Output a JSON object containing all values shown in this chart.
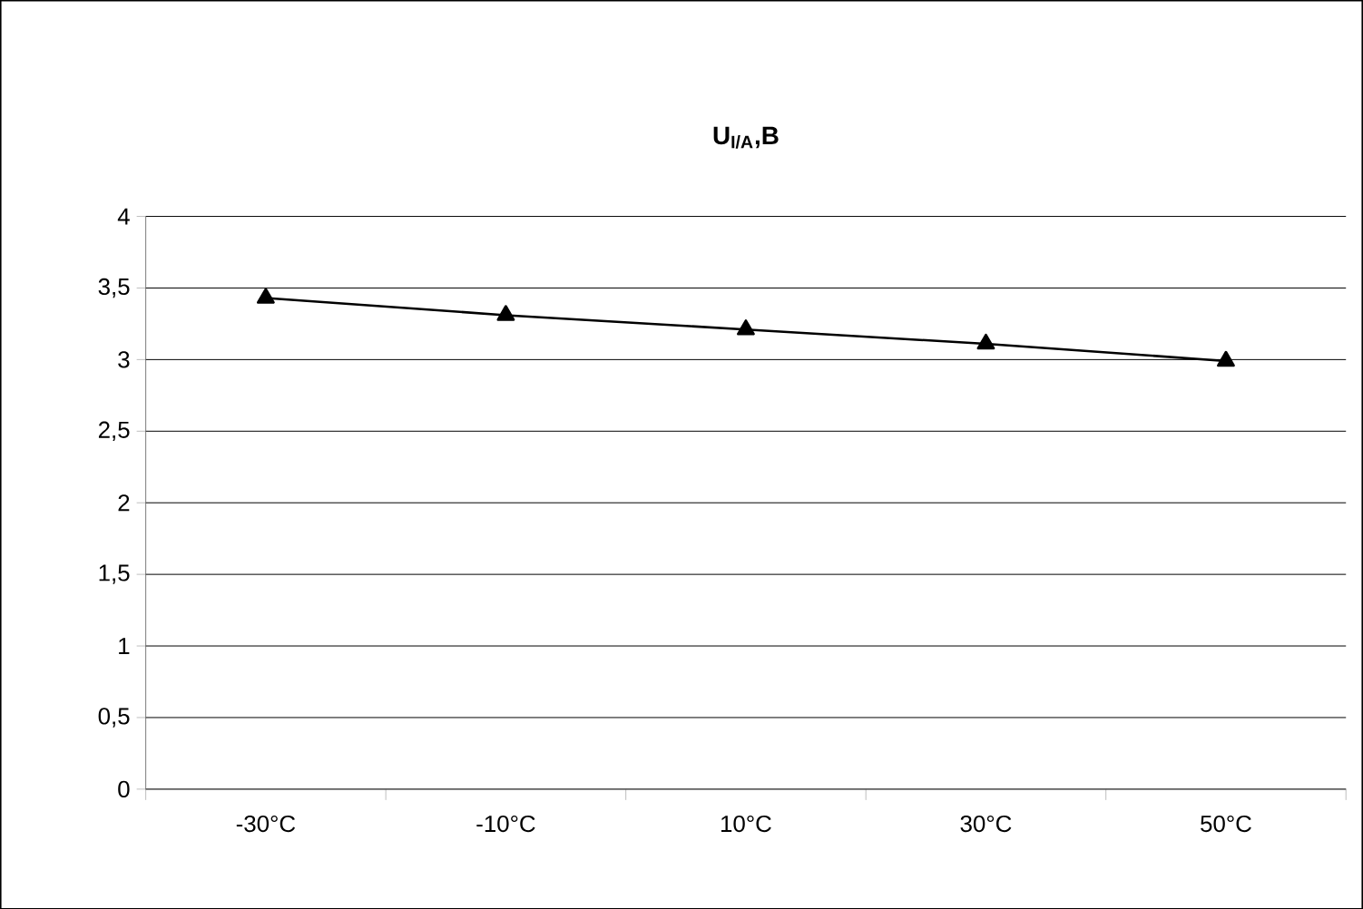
{
  "chart_data": {
    "type": "line",
    "title": "U$_{I/A}$,B",
    "categories": [
      "-30°C",
      "-10°C",
      "10°C",
      "30°C",
      "50°C"
    ],
    "series": [
      {
        "color": "#000000",
        "values": [
          3.43,
          3.31,
          3.21,
          3.11,
          2.99
        ]
      }
    ],
    "ylim": [
      0,
      4
    ],
    "yticks": [
      {
        "value": 0,
        "label": "0"
      },
      {
        "value": 0.5,
        "label": "0,5"
      },
      {
        "value": 1,
        "label": "1"
      },
      {
        "value": 1.5,
        "label": "1,5"
      },
      {
        "value": 2,
        "label": "2"
      },
      {
        "value": 2.5,
        "label": "2,5"
      },
      {
        "value": 3,
        "label": "3"
      },
      {
        "value": 3.5,
        "label": "3,5"
      },
      {
        "value": 4,
        "label": "4"
      }
    ],
    "grid": "y",
    "marker": "triangle",
    "line_style": "solid"
  }
}
